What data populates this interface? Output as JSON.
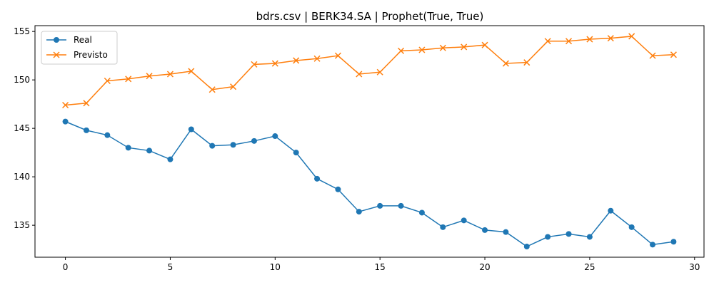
{
  "chart_data": {
    "type": "line",
    "title": "bdrs.csv | BERK34.SA | Prophet(True, True)",
    "xlabel": "",
    "ylabel": "",
    "xlim": [
      -1.45,
      30.45
    ],
    "ylim": [
      131.7,
      155.6
    ],
    "xticks": [
      0,
      5,
      10,
      15,
      20,
      25,
      30
    ],
    "yticks": [
      135,
      140,
      145,
      150,
      155
    ],
    "grid": false,
    "legend_position": "upper left",
    "x": [
      0,
      1,
      2,
      3,
      4,
      5,
      6,
      7,
      8,
      9,
      10,
      11,
      12,
      13,
      14,
      15,
      16,
      17,
      18,
      19,
      20,
      21,
      22,
      23,
      24,
      25,
      26,
      27,
      28,
      29
    ],
    "series": [
      {
        "name": "Real",
        "color": "#1f77b4",
        "marker": "circle",
        "values": [
          145.7,
          144.8,
          144.3,
          143.0,
          142.7,
          141.8,
          144.9,
          143.2,
          143.3,
          143.7,
          144.2,
          142.5,
          139.8,
          138.7,
          136.4,
          137.0,
          137.0,
          136.3,
          134.8,
          135.5,
          134.5,
          134.3,
          132.8,
          133.8,
          134.1,
          133.8,
          136.5,
          134.8,
          133.0,
          133.3
        ]
      },
      {
        "name": "Previsto",
        "color": "#ff7f0e",
        "marker": "x",
        "values": [
          147.4,
          147.6,
          149.9,
          150.1,
          150.4,
          150.6,
          150.9,
          149.0,
          149.3,
          151.6,
          151.7,
          152.0,
          152.2,
          152.5,
          150.6,
          150.8,
          153.0,
          153.1,
          153.3,
          153.4,
          153.6,
          151.7,
          151.8,
          154.0,
          154.0,
          154.2,
          154.3,
          154.5,
          152.5,
          152.6
        ]
      }
    ]
  }
}
